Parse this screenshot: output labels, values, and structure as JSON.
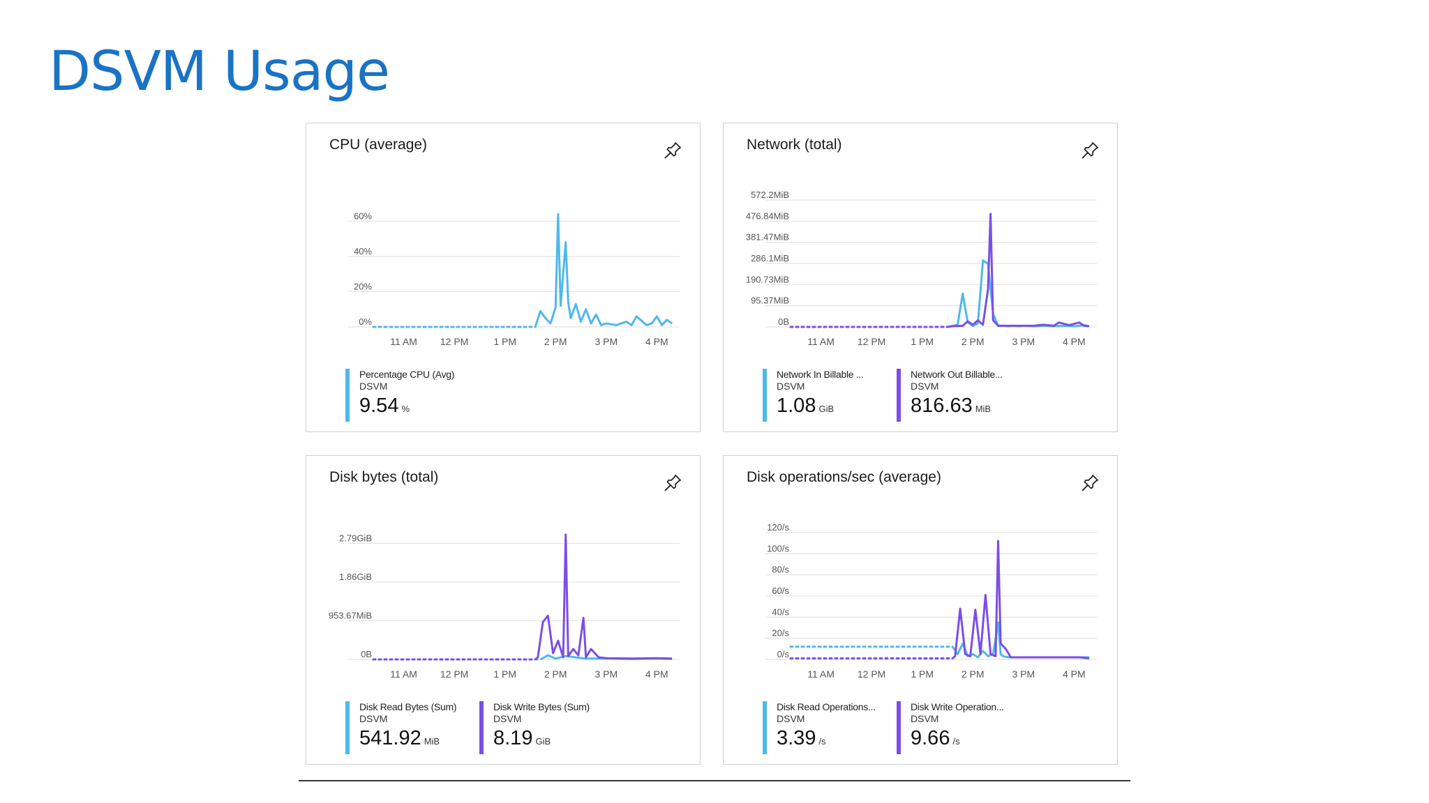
{
  "page": {
    "title": "DSVM Usage"
  },
  "colors": {
    "title": "#1a73c4",
    "series_blue": "#4fb8ea",
    "series_purple": "#7b4ee8",
    "grid": "#e3e3e3"
  },
  "icons": {
    "pin": "pin-icon"
  },
  "cards": [
    {
      "title": "CPU (average)",
      "legend": [
        {
          "name": "Percentage CPU (Avg)",
          "resource": "DSVM",
          "value": "9.54",
          "unit": "%"
        }
      ]
    },
    {
      "title": "Network (total)",
      "legend": [
        {
          "name": "Network In Billable ...",
          "resource": "DSVM",
          "value": "1.08",
          "unit": "GiB"
        },
        {
          "name": "Network Out Billable...",
          "resource": "DSVM",
          "value": "816.63",
          "unit": "MiB"
        }
      ]
    },
    {
      "title": "Disk bytes (total)",
      "legend": [
        {
          "name": "Disk Read Bytes (Sum)",
          "resource": "DSVM",
          "value": "541.92",
          "unit": "MiB"
        },
        {
          "name": "Disk Write Bytes (Sum)",
          "resource": "DSVM",
          "value": "8.19",
          "unit": "GiB"
        }
      ]
    },
    {
      "title": "Disk operations/sec (average)",
      "legend": [
        {
          "name": "Disk Read Operations...",
          "resource": "DSVM",
          "value": "3.39",
          "unit": "/s"
        },
        {
          "name": "Disk Write Operation...",
          "resource": "DSVM",
          "value": "9.66",
          "unit": "/s"
        }
      ]
    }
  ],
  "chart_data": [
    {
      "type": "line",
      "title": "CPU (average)",
      "x_tick_labels": [
        "11 AM",
        "12 PM",
        "1 PM",
        "2 PM",
        "3 PM",
        "4 PM"
      ],
      "xlim": [
        10.4,
        16.45
      ],
      "y_tick_labels": [
        "0%",
        "20%",
        "40%",
        "60%"
      ],
      "y_ticks": [
        0,
        20,
        40,
        60
      ],
      "ylim": [
        0,
        72
      ],
      "grid": true,
      "series": [
        {
          "name": "Percentage CPU (Avg)",
          "color": "#4fb8ea",
          "dashed_until": 13.6,
          "x": [
            10.4,
            13.6,
            13.7,
            13.8,
            13.9,
            14.0,
            14.05,
            14.1,
            14.2,
            14.25,
            14.3,
            14.4,
            14.5,
            14.6,
            14.7,
            14.8,
            14.9,
            15.0,
            15.2,
            15.4,
            15.5,
            15.6,
            15.8,
            15.9,
            16.0,
            16.1,
            16.2,
            16.3
          ],
          "y": [
            0,
            0,
            9,
            5,
            2,
            11,
            64,
            12,
            48,
            14,
            5,
            13,
            3,
            10,
            2,
            7,
            1,
            2,
            1,
            3,
            1,
            6,
            1,
            2,
            6,
            1,
            4,
            2
          ]
        }
      ]
    },
    {
      "type": "line",
      "title": "Network (total)",
      "x_tick_labels": [
        "11 AM",
        "12 PM",
        "1 PM",
        "2 PM",
        "3 PM",
        "4 PM"
      ],
      "xlim": [
        10.4,
        16.45
      ],
      "y_tick_labels": [
        "0B",
        "95.37MiB",
        "190.73MiB",
        "286.1MiB",
        "381.47MiB",
        "476.84MiB",
        "572.2MiB"
      ],
      "y_ticks": [
        0,
        95.37,
        190.73,
        286.1,
        381.47,
        476.84,
        572.2
      ],
      "ylim": [
        0,
        572.2
      ],
      "grid": true,
      "series": [
        {
          "name": "Network In Billable ...",
          "color": "#4fb8ea",
          "dashed_until": 13.5,
          "x": [
            10.4,
            13.5,
            13.6,
            13.7,
            13.8,
            13.9,
            14.0,
            14.1,
            14.2,
            14.3,
            14.4,
            14.5,
            14.6,
            14.7,
            14.8,
            14.9,
            15.0,
            15.2,
            15.4,
            15.6,
            15.8,
            16.0,
            16.2,
            16.3
          ],
          "y": [
            0,
            0,
            5,
            10,
            150,
            20,
            5,
            15,
            300,
            285,
            60,
            5,
            5,
            3,
            5,
            3,
            5,
            3,
            5,
            3,
            5,
            3,
            8,
            3
          ]
        },
        {
          "name": "Network Out Billable...",
          "color": "#7b4ee8",
          "dashed_until": 13.5,
          "x": [
            10.4,
            13.5,
            13.6,
            13.8,
            13.9,
            14.0,
            14.1,
            14.2,
            14.3,
            14.35,
            14.4,
            14.5,
            14.7,
            14.9,
            15.1,
            15.2,
            15.4,
            15.6,
            15.7,
            15.9,
            16.1,
            16.2,
            16.3
          ],
          "y": [
            0,
            0,
            3,
            5,
            25,
            10,
            30,
            10,
            170,
            510,
            30,
            5,
            5,
            5,
            5,
            5,
            10,
            5,
            20,
            8,
            20,
            5,
            3
          ]
        }
      ]
    },
    {
      "type": "line",
      "title": "Disk bytes (total)",
      "x_tick_labels": [
        "11 AM",
        "12 PM",
        "1 PM",
        "2 PM",
        "3 PM",
        "4 PM"
      ],
      "xlim": [
        10.4,
        16.45
      ],
      "y_tick_labels": [
        "0B",
        "953.67MiB",
        "1.86GiB",
        "2.79GiB"
      ],
      "y_ticks": [
        0,
        0.93,
        1.86,
        2.79
      ],
      "ylim": [
        0,
        3.05
      ],
      "grid": true,
      "series": [
        {
          "name": "Disk Read Bytes (Sum)",
          "color": "#4fb8ea",
          "dashed_until": 13.7,
          "x": [
            10.4,
            13.7,
            13.85,
            14.0,
            14.2,
            14.6,
            15.0,
            15.5,
            16.0,
            16.3
          ],
          "y": [
            0,
            0,
            0.1,
            0.02,
            0.08,
            0.02,
            0.02,
            0.01,
            0.02,
            0.01
          ]
        },
        {
          "name": "Disk Write Bytes (Sum)",
          "color": "#7b4ee8",
          "dashed_until": 13.6,
          "x": [
            10.4,
            13.6,
            13.65,
            13.75,
            13.85,
            13.95,
            14.05,
            14.15,
            14.2,
            14.25,
            14.35,
            14.45,
            14.55,
            14.6,
            14.7,
            14.85,
            15.0,
            15.5,
            16.0,
            16.3
          ],
          "y": [
            0,
            0,
            0.05,
            0.9,
            1.05,
            0.15,
            0.45,
            0.05,
            3.0,
            0.08,
            0.25,
            0.1,
            1.0,
            0.05,
            0.25,
            0.05,
            0.03,
            0.02,
            0.03,
            0.02
          ]
        }
      ]
    },
    {
      "type": "line",
      "title": "Disk operations/sec (average)",
      "x_tick_labels": [
        "11 AM",
        "12 PM",
        "1 PM",
        "2 PM",
        "3 PM",
        "4 PM"
      ],
      "xlim": [
        10.4,
        16.45
      ],
      "y_tick_labels": [
        "0/s",
        "20/s",
        "40/s",
        "60/s",
        "80/s",
        "100/s",
        "120/s"
      ],
      "y_ticks": [
        0,
        20,
        40,
        60,
        80,
        100,
        120
      ],
      "ylim": [
        0,
        120
      ],
      "grid": true,
      "series": [
        {
          "name": "Disk Read Operations...",
          "color": "#4fb8ea",
          "dashed_until": 13.6,
          "x": [
            10.4,
            13.6,
            13.7,
            13.8,
            13.9,
            14.0,
            14.1,
            14.2,
            14.3,
            14.4,
            14.5,
            14.55,
            14.6,
            14.7,
            14.9,
            15.2,
            15.5,
            15.8,
            16.1,
            16.3
          ],
          "y": [
            12,
            12,
            5,
            15,
            3,
            5,
            2,
            8,
            3,
            5,
            35,
            5,
            3,
            2,
            2,
            2,
            2,
            2,
            2,
            2
          ]
        },
        {
          "name": "Disk Write Operation...",
          "color": "#7b4ee8",
          "dashed_until": 13.6,
          "x": [
            10.4,
            13.6,
            13.65,
            13.75,
            13.85,
            13.95,
            14.05,
            14.15,
            14.25,
            14.35,
            14.45,
            14.5,
            14.55,
            14.65,
            14.75,
            14.9,
            15.2,
            15.5,
            15.8,
            16.1,
            16.3
          ],
          "y": [
            1,
            1,
            3,
            48,
            5,
            3,
            47,
            5,
            61,
            5,
            3,
            112,
            15,
            10,
            2,
            2,
            2,
            2,
            2,
            2,
            1
          ]
        }
      ]
    }
  ]
}
